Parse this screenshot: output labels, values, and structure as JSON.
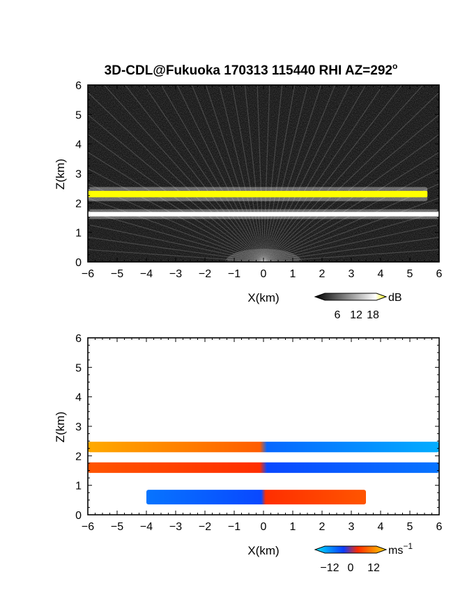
{
  "chart_data": [
    {
      "type": "heatmap",
      "title": "3D-CDL@Fukuoka 170313 115440 RHI AZ=292",
      "title_superscript": "o",
      "xlabel": "X(km)",
      "ylabel": "Z(km)",
      "xlim": [
        -6,
        6
      ],
      "ylim": [
        0,
        6
      ],
      "x_ticks": [
        "−6",
        "−5",
        "−4",
        "−3",
        "−2",
        "−1",
        "0",
        "1",
        "2",
        "3",
        "4",
        "5",
        "6"
      ],
      "y_ticks": [
        "0",
        "1",
        "2",
        "3",
        "4",
        "5",
        "6"
      ],
      "colorbar": {
        "unit": "dB",
        "ticks": [
          "6",
          "12",
          "18"
        ],
        "range": [
          0,
          20
        ]
      },
      "colormap": [
        "#000000",
        "#ffffff",
        "#ffff00"
      ],
      "layers": [
        {
          "z_km": 2.3,
          "x_start_km": -6.0,
          "x_end_km": 5.6,
          "signal_dB": 20
        },
        {
          "z_km": 1.62,
          "x_start_km": -6.0,
          "x_end_km": 6.0,
          "signal_dB": 16
        }
      ]
    },
    {
      "type": "heatmap",
      "xlabel": "X(km)",
      "ylabel": "Z(km)",
      "xlim": [
        -6,
        6
      ],
      "ylim": [
        0,
        6
      ],
      "x_ticks": [
        "−6",
        "−5",
        "−4",
        "−3",
        "−2",
        "−1",
        "0",
        "1",
        "2",
        "3",
        "4",
        "5",
        "6"
      ],
      "y_ticks": [
        "0",
        "1",
        "2",
        "3",
        "4",
        "5",
        "6"
      ],
      "colorbar": {
        "unit": "ms",
        "unit_superscript": "−1",
        "ticks": [
          "−12",
          "0",
          "12"
        ],
        "range": [
          -15,
          15
        ]
      },
      "colormap": [
        "#00e5ff",
        "#0a3cff",
        "#ff2a00",
        "#ffd400"
      ],
      "layers": [
        {
          "z_km": 2.3,
          "x_start_km": -6.0,
          "x_end_km": 6.0,
          "velocity_left_ms": 12,
          "velocity_right_ms": -11
        },
        {
          "z_km": 1.6,
          "x_start_km": -6.0,
          "x_end_km": 6.0,
          "velocity_left_ms": 6,
          "velocity_right_ms": -7
        },
        {
          "z_km": 0.6,
          "x_start_km": -4.0,
          "x_end_km": 3.5,
          "velocity_left_ms": -7,
          "velocity_right_ms": 6
        }
      ]
    }
  ]
}
